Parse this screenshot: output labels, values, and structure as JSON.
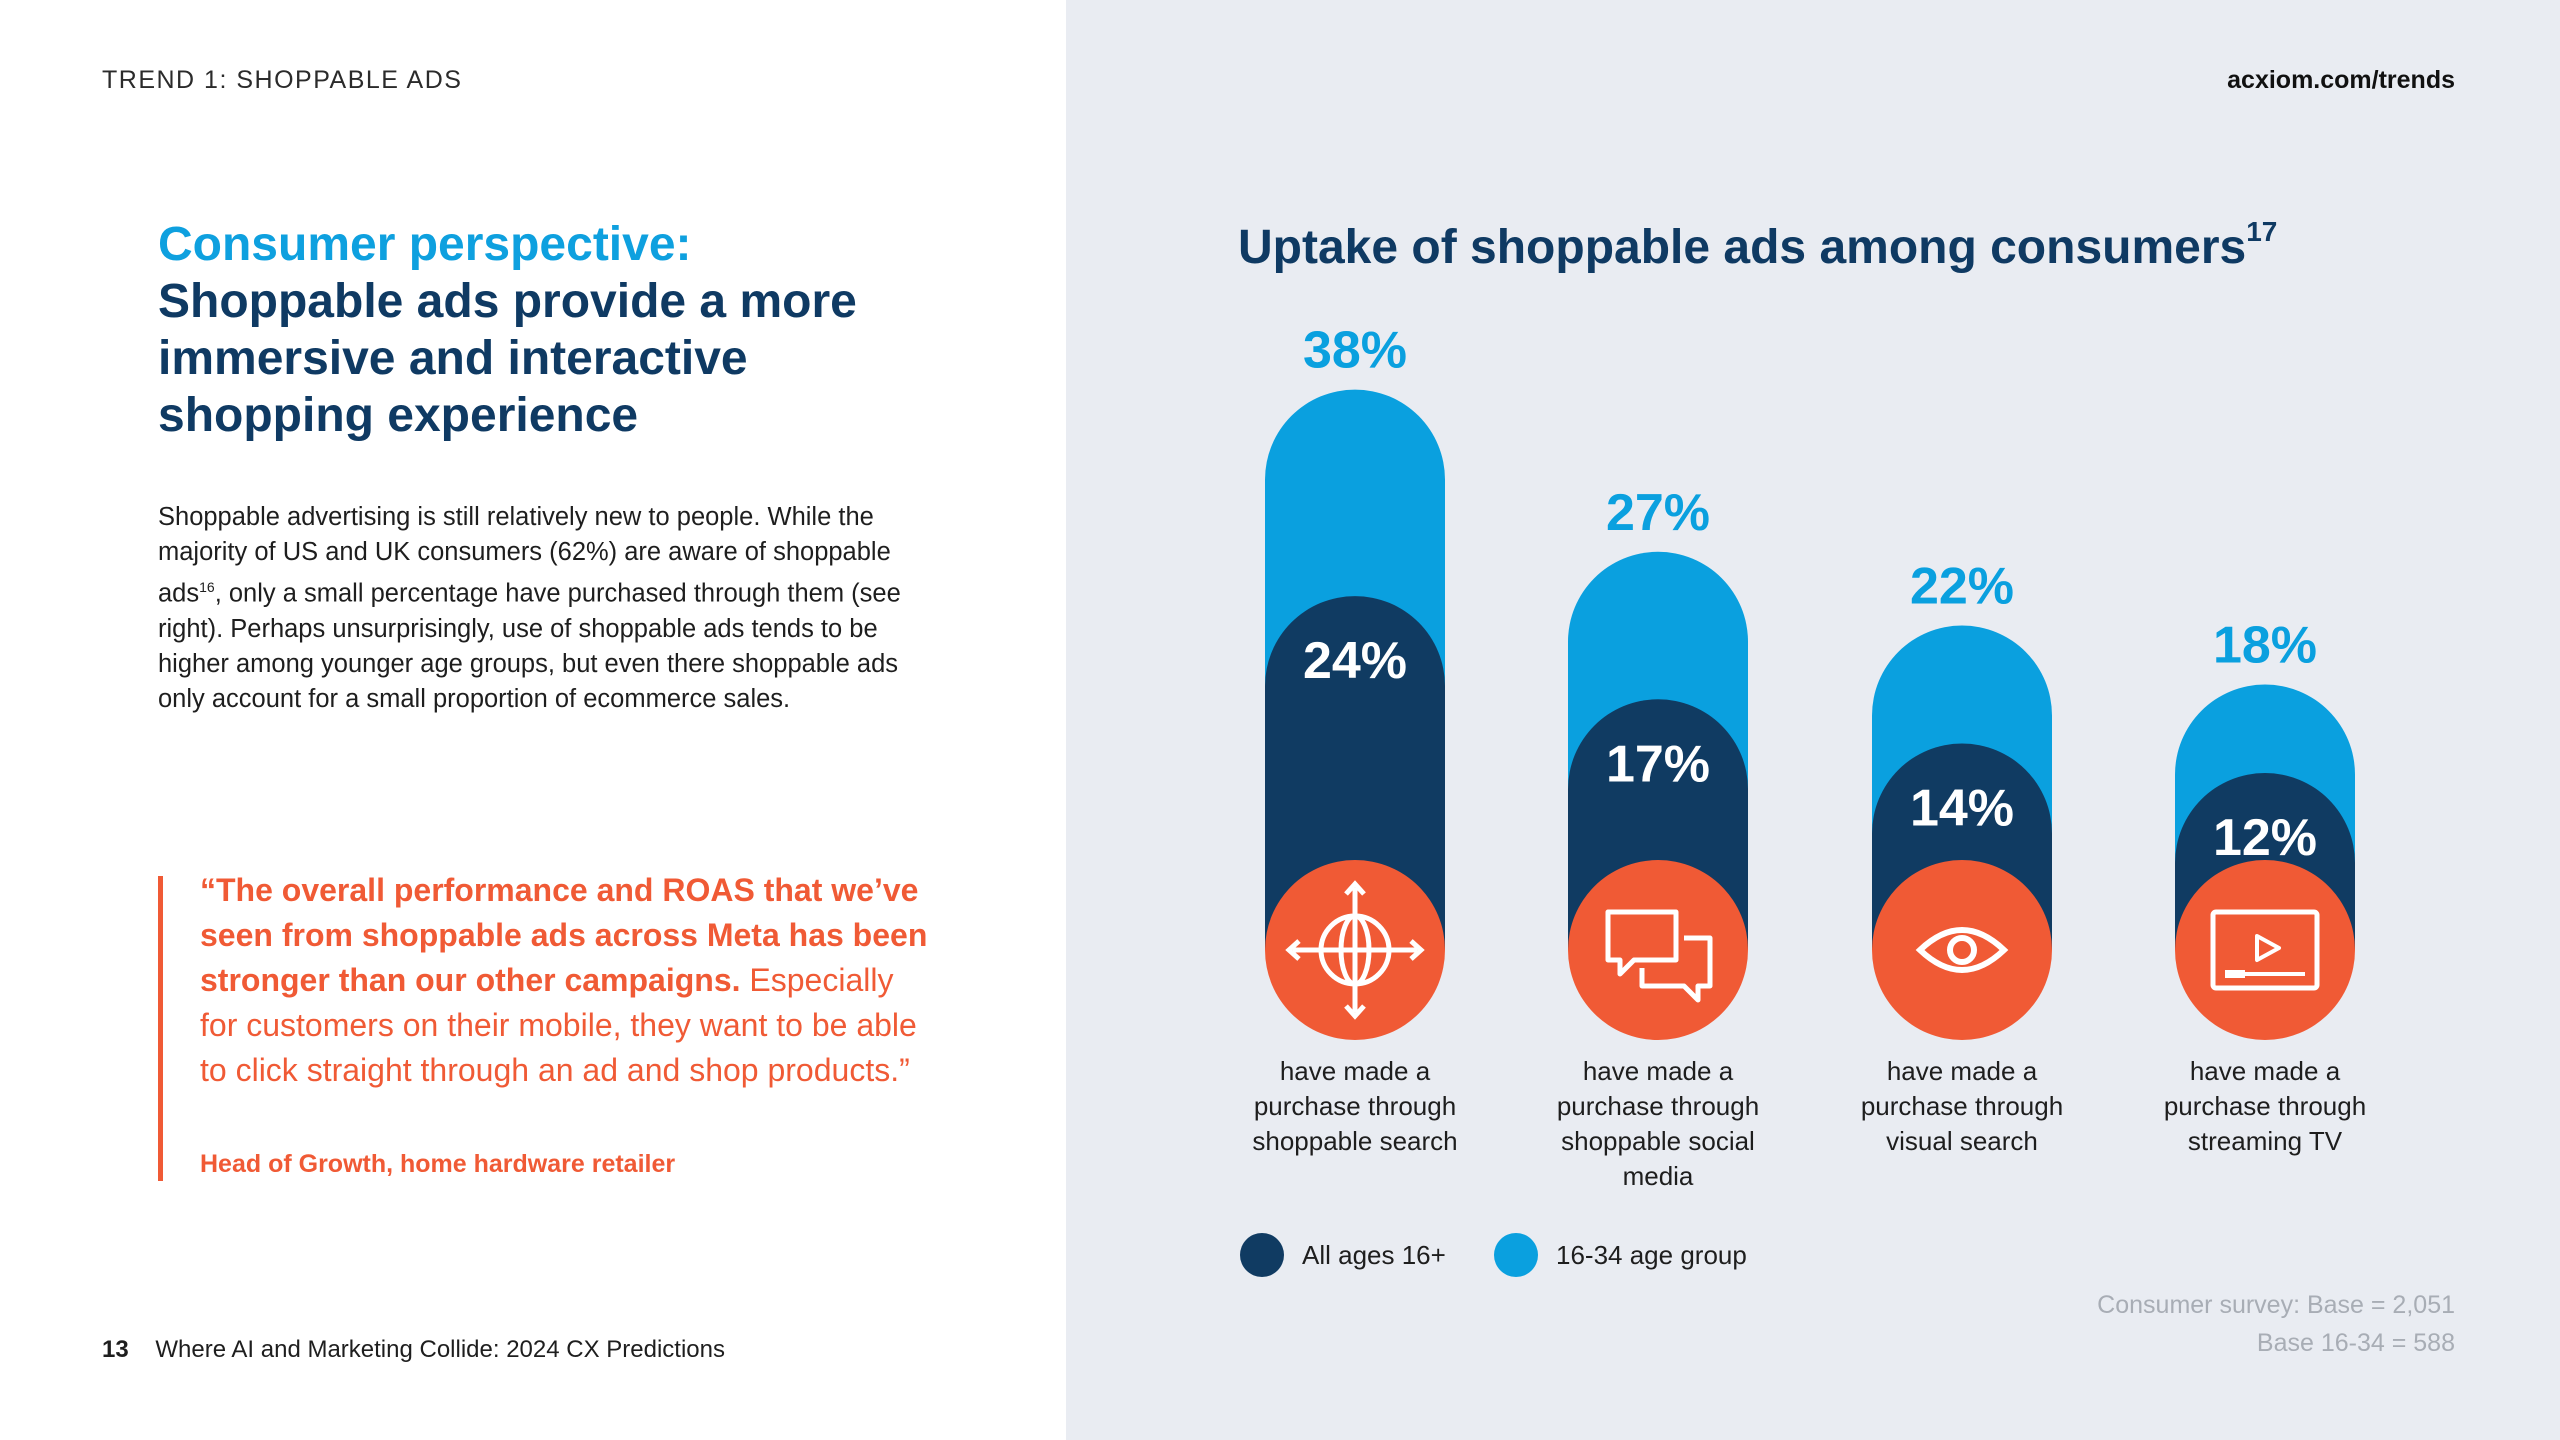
{
  "header": {
    "section_label": "TREND 1: SHOPPABLE ADS",
    "site": "acxiom.com/trends"
  },
  "headline": {
    "accent": "Consumer perspective:",
    "main": "Shoppable ads provide a more immersive and interactive shopping experience"
  },
  "body": {
    "part1": "Shoppable advertising is still relatively new to people. While the majority of US and UK consumers (62%) are aware of shoppable ads",
    "ref": "16",
    "part2": ", only a small percentage have purchased through them (see right). Perhaps unsurprisingly, use of shoppable ads tends to be higher among younger age groups, but even there shoppable ads only account for a small proportion of ecommerce sales."
  },
  "quote": {
    "strong": "“The overall performance and ROAS that we’ve seen from shoppable ads across Meta has been stronger than our other campaigns.",
    "rest": " Especially for customers on their mobile, they want to be able to click straight through an ad and shop products.”",
    "attribution": "Head of Growth, home hardware retailer"
  },
  "footer": {
    "page_number": "13",
    "title": "Where AI and Marketing Collide: 2024 CX Predictions"
  },
  "chart_data": {
    "type": "bar",
    "title": "Uptake of shoppable ads among consumers",
    "title_ref": "17",
    "categories": [
      "have made a purchase through shoppable search",
      "have made a purchase through shoppable social media",
      "have made a purchase through visual search",
      "have made a purchase through streaming TV"
    ],
    "category_icons": [
      "target-crosshair-icon",
      "chat-bubbles-icon",
      "eye-icon",
      "video-play-icon"
    ],
    "series": [
      {
        "name": "All ages 16+",
        "values": [
          24,
          17,
          14,
          12
        ],
        "labels": [
          "24%",
          "17%",
          "14%",
          "12%"
        ],
        "color": "#103b62"
      },
      {
        "name": "16-34 age group",
        "values": [
          38,
          27,
          22,
          18
        ],
        "labels": [
          "38%",
          "27%",
          "22%",
          "18%"
        ],
        "color": "#0aa0df"
      }
    ],
    "unit": "%",
    "legend_position": "bottom-left",
    "grid": false
  },
  "survey_note": {
    "line1": "Consumer survey: Base = 2,051",
    "line2": "Base 16-34 = 588"
  },
  "colors": {
    "navy": "#0f3a63",
    "blue": "#0ea0df",
    "orange": "#f05a35",
    "panel": "#e9ecf2",
    "grey_note": "#a8adb5"
  }
}
